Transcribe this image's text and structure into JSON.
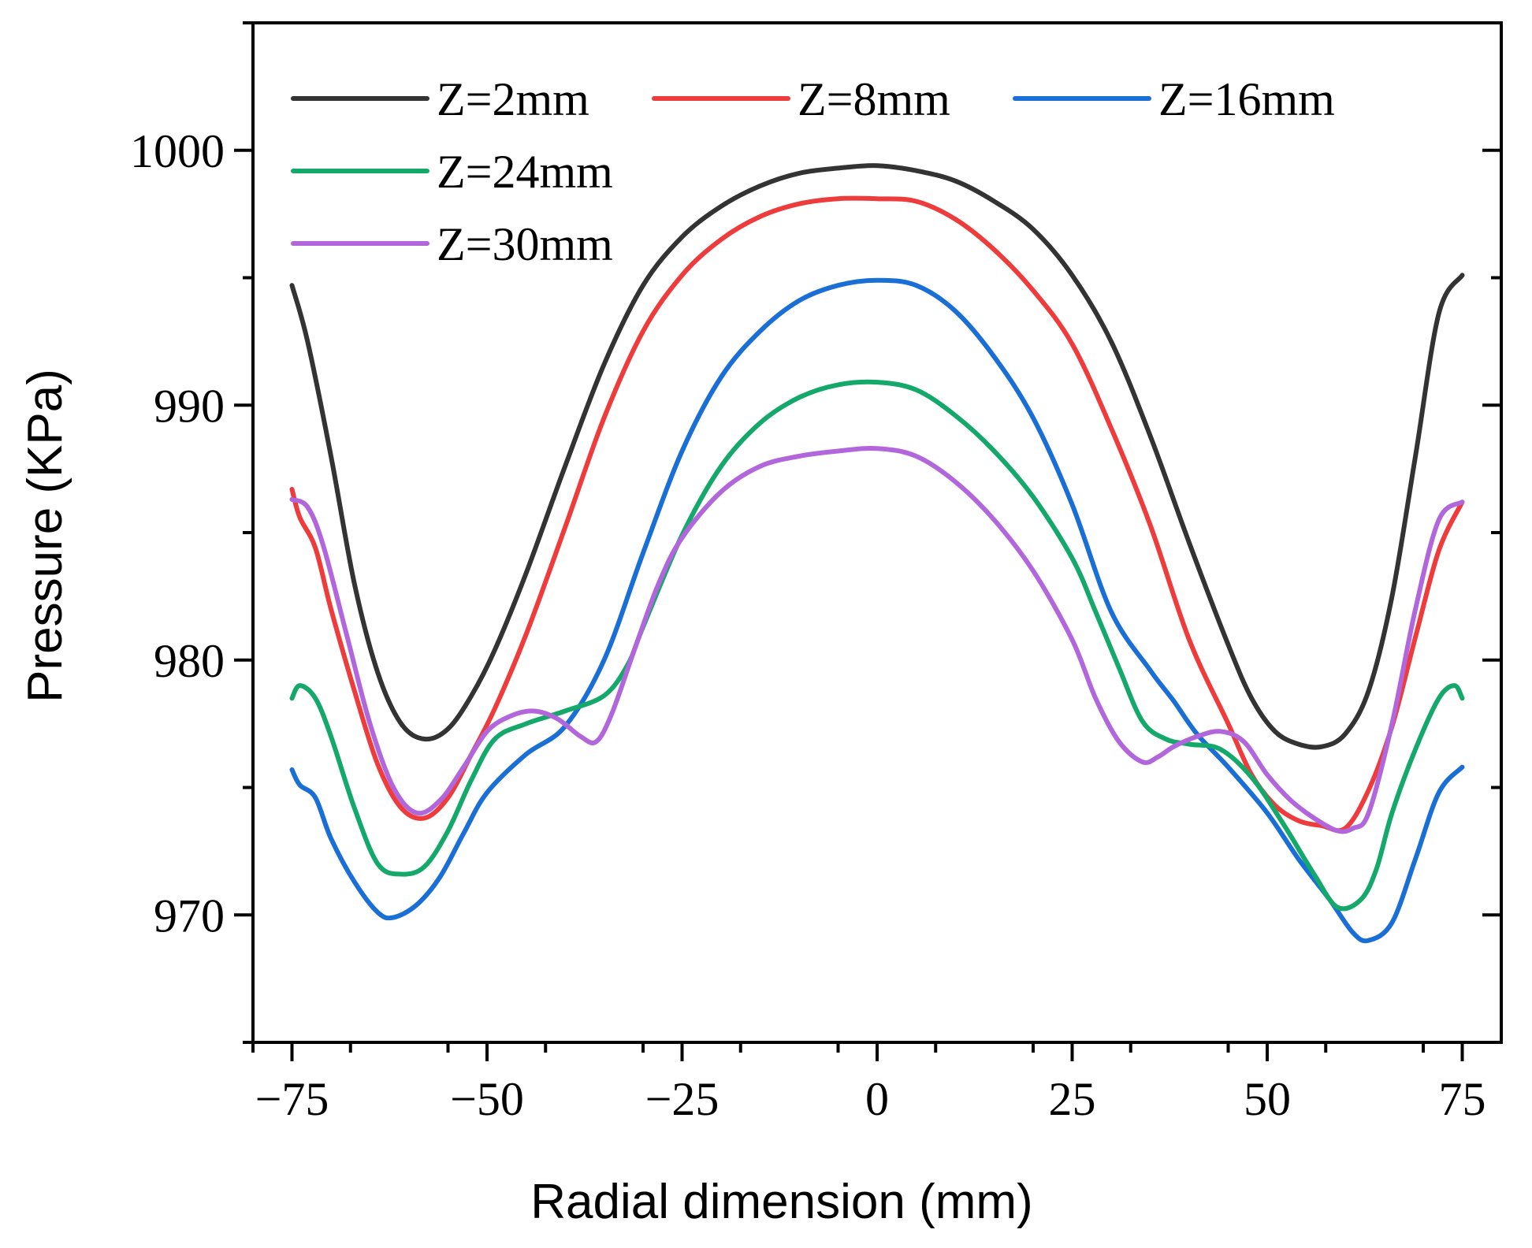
{
  "chart_data": {
    "type": "line",
    "title": "",
    "xlabel": "Radial dimension (mm)",
    "ylabel": "Pressure (KPa)",
    "xlim": [
      -80,
      80
    ],
    "ylim": [
      965,
      1005
    ],
    "xticks": [
      -75,
      -50,
      -25,
      0,
      25,
      50,
      75
    ],
    "xtick_labels": [
      "−75",
      "−50",
      "−25",
      "0",
      "25",
      "50",
      "75"
    ],
    "yticks": [
      970,
      980,
      990,
      1000
    ],
    "ytick_labels": [
      "970",
      "980",
      "990",
      "1000"
    ],
    "grid": false,
    "legend_position": "top-left",
    "series": [
      {
        "name": "Z=2mm",
        "color": "#333333",
        "x": [
          -75,
          -73,
          -70,
          -67,
          -64,
          -61,
          -58,
          -55,
          -52,
          -49,
          -45,
          -40,
          -35,
          -30,
          -25,
          -20,
          -15,
          -10,
          -5,
          0,
          5,
          10,
          15,
          20,
          25,
          30,
          35,
          40,
          45,
          48,
          51,
          54,
          57,
          60,
          63,
          66,
          69,
          72,
          75
        ],
        "y": [
          994.7,
          992.5,
          988.0,
          983.0,
          979.5,
          977.5,
          976.9,
          977.3,
          978.6,
          980.4,
          983.4,
          987.6,
          991.6,
          994.7,
          996.6,
          997.8,
          998.6,
          999.1,
          999.3,
          999.4,
          999.2,
          998.8,
          998.0,
          996.9,
          995.1,
          992.5,
          988.8,
          984.6,
          980.6,
          978.5,
          977.2,
          976.7,
          976.6,
          977.1,
          978.8,
          982.5,
          988.0,
          993.6,
          995.1
        ]
      },
      {
        "name": "Z=8mm",
        "color": "#ee3b3b",
        "x": [
          -75,
          -74,
          -72,
          -70,
          -67,
          -64,
          -61,
          -58,
          -55,
          -52,
          -49,
          -45,
          -40,
          -35,
          -30,
          -25,
          -20,
          -15,
          -10,
          -5,
          0,
          5,
          10,
          15,
          20,
          25,
          30,
          35,
          40,
          45,
          48,
          51,
          54,
          57,
          60,
          63,
          66,
          69,
          72,
          75
        ],
        "y": [
          986.7,
          985.6,
          984.4,
          982.0,
          978.8,
          975.9,
          974.2,
          973.8,
          974.6,
          976.3,
          978.1,
          981.0,
          985.2,
          989.5,
          992.9,
          995.1,
          996.5,
          997.4,
          997.9,
          998.1,
          998.1,
          998.0,
          997.3,
          996.1,
          994.5,
          992.4,
          989.1,
          985.3,
          980.8,
          977.5,
          975.5,
          974.3,
          973.7,
          973.5,
          973.4,
          974.9,
          977.4,
          980.9,
          984.3,
          986.2
        ]
      },
      {
        "name": "Z=16mm",
        "color": "#1a6fd6",
        "x": [
          -75,
          -74,
          -72,
          -70,
          -67,
          -64,
          -62,
          -59,
          -56,
          -53,
          -50,
          -45,
          -40,
          -35,
          -30,
          -25,
          -20,
          -15,
          -10,
          -5,
          0,
          5,
          10,
          15,
          20,
          25,
          30,
          35,
          38,
          41,
          45,
          50,
          54,
          58,
          61,
          63,
          66,
          69,
          72,
          75
        ],
        "y": [
          975.7,
          975.1,
          974.6,
          973.0,
          971.3,
          970.1,
          969.9,
          970.4,
          971.5,
          973.2,
          974.8,
          976.3,
          977.4,
          980.0,
          984.2,
          988.2,
          991.1,
          992.9,
          994.1,
          994.7,
          994.9,
          994.7,
          993.7,
          991.9,
          989.5,
          986.1,
          981.9,
          979.6,
          978.4,
          977.1,
          975.8,
          974.0,
          972.2,
          970.6,
          969.3,
          969.0,
          969.7,
          972.2,
          974.8,
          975.8
        ]
      },
      {
        "name": "Z=24mm",
        "color": "#14a86a",
        "x": [
          -75,
          -74,
          -72,
          -70,
          -67,
          -64,
          -61,
          -58,
          -55,
          -52,
          -49,
          -45,
          -40,
          -35,
          -32,
          -30,
          -25,
          -20,
          -15,
          -10,
          -5,
          0,
          5,
          10,
          15,
          20,
          25,
          28,
          31,
          34,
          37,
          40,
          44,
          48,
          52,
          56,
          59,
          62,
          64,
          66,
          69,
          72,
          74,
          75
        ],
        "y": [
          978.5,
          979.0,
          978.5,
          977.0,
          974.2,
          972.0,
          971.6,
          971.9,
          973.3,
          975.3,
          976.9,
          977.5,
          978.0,
          978.6,
          979.8,
          981.3,
          984.9,
          987.6,
          989.3,
          990.3,
          990.8,
          990.9,
          990.6,
          989.6,
          988.2,
          986.4,
          984.0,
          981.9,
          979.7,
          977.6,
          976.9,
          976.7,
          976.5,
          975.4,
          973.6,
          971.6,
          970.3,
          970.6,
          971.8,
          974.0,
          976.5,
          978.5,
          979.0,
          978.5
        ]
      },
      {
        "name": "Z=30mm",
        "color": "#b266dc",
        "x": [
          -75,
          -73,
          -71,
          -68,
          -65,
          -62,
          -59,
          -56,
          -53,
          -50,
          -47,
          -44,
          -41,
          -38,
          -36,
          -34,
          -31,
          -28,
          -25,
          -20,
          -15,
          -10,
          -5,
          0,
          5,
          10,
          15,
          20,
          25,
          28,
          31,
          34,
          36,
          38,
          41,
          44,
          47,
          50,
          53,
          56,
          59,
          61,
          63,
          66,
          69,
          72,
          75
        ],
        "y": [
          986.3,
          986.0,
          984.5,
          981.0,
          977.5,
          975.0,
          974.0,
          974.5,
          975.8,
          977.2,
          977.8,
          978.0,
          977.7,
          977.0,
          976.8,
          977.9,
          980.5,
          983.0,
          984.8,
          986.6,
          987.6,
          988.0,
          988.2,
          988.3,
          988.0,
          987.0,
          985.5,
          983.5,
          980.8,
          978.5,
          976.8,
          976.0,
          976.2,
          976.6,
          977.0,
          977.2,
          976.8,
          975.5,
          974.5,
          973.8,
          973.3,
          973.4,
          974.0,
          977.5,
          982.0,
          985.5,
          986.2
        ]
      }
    ]
  }
}
